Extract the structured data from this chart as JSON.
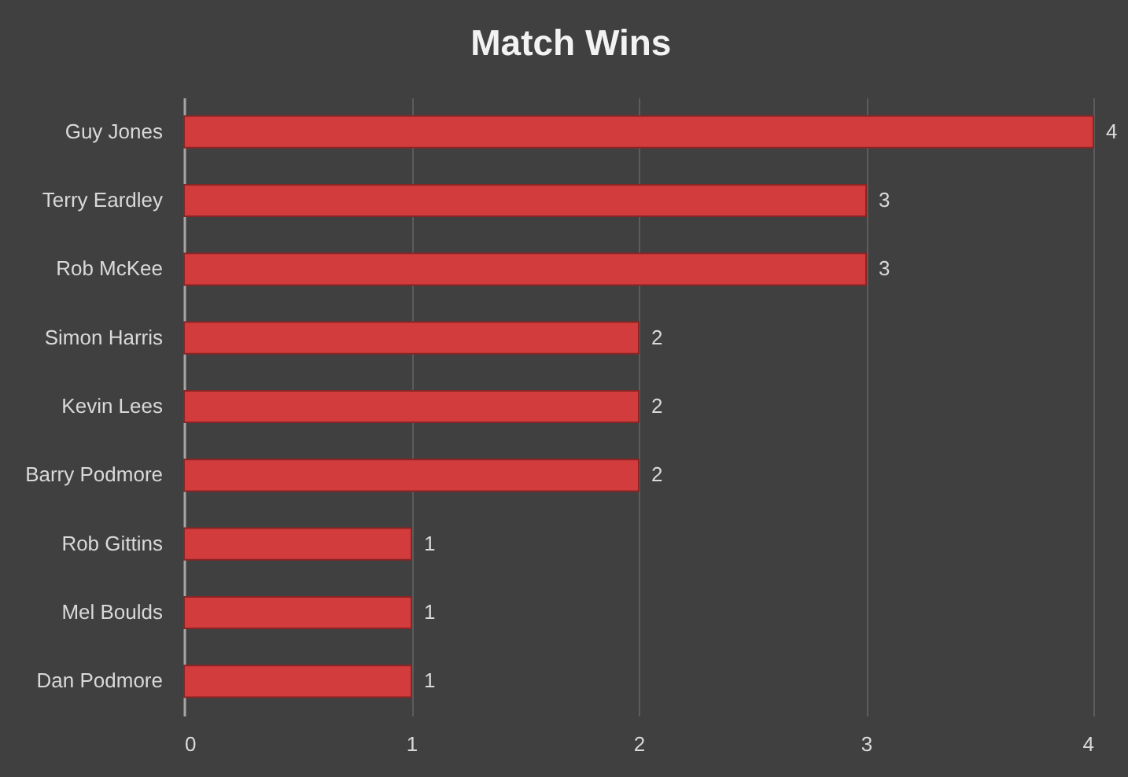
{
  "chart_data": {
    "type": "bar",
    "orientation": "horizontal",
    "title": "Match Wins",
    "categories": [
      "Guy Jones",
      "Terry Eardley",
      "Rob McKee",
      "Simon Harris",
      "Kevin Lees",
      "Barry Podmore",
      "Rob Gittins",
      "Mel Boulds",
      "Dan Podmore"
    ],
    "values": [
      4,
      3,
      3,
      2,
      2,
      2,
      1,
      1,
      1
    ],
    "color": "#d23c3c",
    "xlim": [
      0,
      4
    ],
    "xticks": [
      0,
      1,
      2,
      3,
      4
    ],
    "grid": "x",
    "data_labels": true
  }
}
